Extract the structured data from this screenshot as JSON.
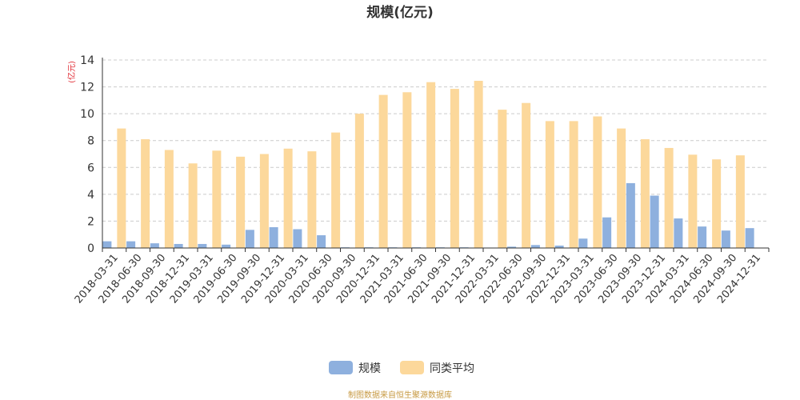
{
  "chart_data": {
    "type": "bar",
    "title": "规模(亿元)",
    "ylabel": "(亿元)",
    "xlabel": "",
    "ylim": [
      0,
      14
    ],
    "yticks": [
      0,
      2,
      4,
      6,
      8,
      10,
      12,
      14
    ],
    "grid": true,
    "legend_position": "bottom",
    "categories": [
      "2018-03-31",
      "2018-06-30",
      "2018-09-30",
      "2018-12-31",
      "2019-03-31",
      "2019-06-30",
      "2019-09-30",
      "2019-12-31",
      "2020-03-31",
      "2020-06-30",
      "2020-09-30",
      "2020-12-31",
      "2021-03-31",
      "2021-06-30",
      "2021-09-30",
      "2021-12-31",
      "2022-03-31",
      "2022-06-30",
      "2022-09-30",
      "2022-12-31",
      "2023-03-31",
      "2023-06-30",
      "2023-09-30",
      "2023-12-31",
      "2024-03-31",
      "2024-06-30",
      "2024-09-30",
      "2024-12-31"
    ],
    "series": [
      {
        "name": "规模",
        "color": "#8eb0de",
        "values": [
          0.5,
          0.5,
          0.35,
          0.3,
          0.3,
          0.25,
          1.35,
          1.55,
          1.4,
          0.95,
          0.05,
          0.05,
          0.05,
          0.05,
          0.05,
          0.05,
          0.03,
          0.1,
          0.22,
          0.18,
          0.7,
          2.28,
          4.83,
          3.9,
          2.2,
          1.6,
          1.3,
          1.48
        ]
      },
      {
        "name": "同类平均",
        "color": "#fcd89b",
        "values": [
          8.9,
          8.1,
          7.3,
          6.3,
          7.25,
          6.8,
          7.0,
          7.4,
          7.2,
          8.6,
          10.0,
          11.4,
          11.6,
          12.35,
          11.85,
          12.45,
          10.3,
          10.8,
          9.45,
          9.45,
          9.8,
          8.9,
          8.1,
          7.45,
          6.95,
          6.6,
          6.9,
          null
        ]
      }
    ],
    "source": "制图数据来自恒生聚源数据库"
  }
}
